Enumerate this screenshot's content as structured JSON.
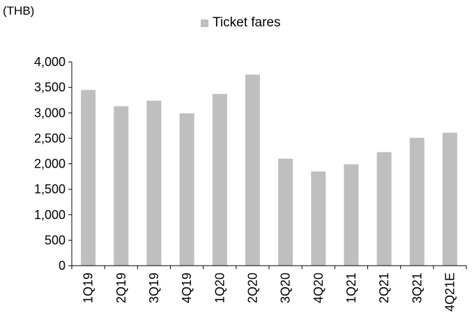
{
  "chart_data": {
    "type": "bar",
    "unit_label": "(THB)",
    "categories": [
      "1Q19",
      "2Q19",
      "3Q19",
      "4Q19",
      "1Q20",
      "2Q20",
      "3Q20",
      "4Q20",
      "1Q21",
      "2Q21",
      "3Q21",
      "4Q21E"
    ],
    "series": [
      {
        "name": "Ticket fares",
        "values": [
          3450,
          3130,
          3240,
          2990,
          3370,
          3750,
          2100,
          1850,
          1990,
          2230,
          2510,
          2610
        ],
        "color": "#bfbfbf"
      }
    ],
    "ylim": [
      0,
      4000
    ],
    "yticks": [
      0,
      500,
      1000,
      1500,
      2000,
      2500,
      3000,
      3500,
      4000
    ],
    "ytick_labels": [
      "0",
      "500",
      "1,000",
      "1,500",
      "2,000",
      "2,500",
      "3,000",
      "3,500",
      "4,000"
    ],
    "grid": false,
    "legend_position": "top-center"
  }
}
